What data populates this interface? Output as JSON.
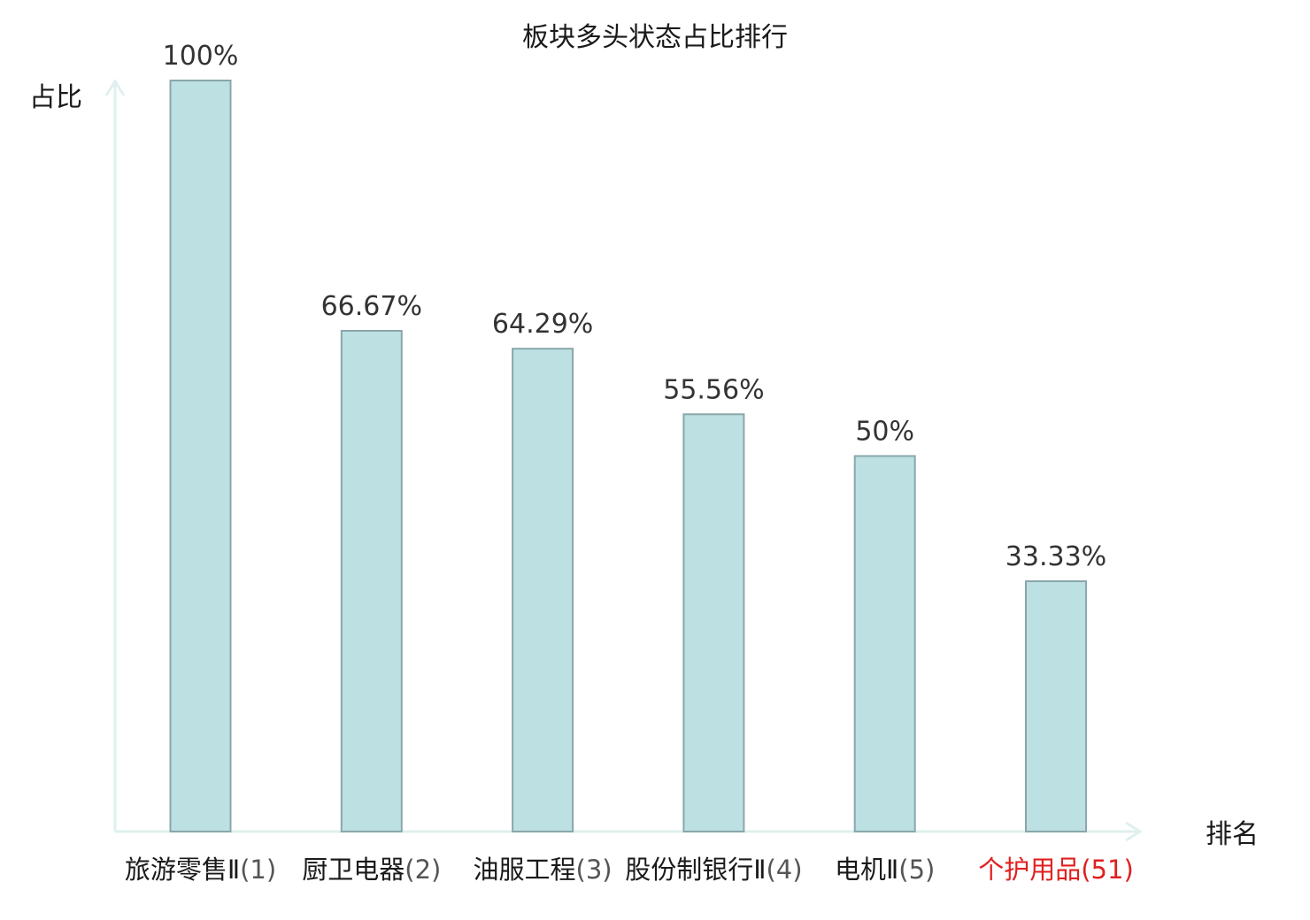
{
  "chart_data": {
    "type": "bar",
    "title": "板块多头状态占比排行",
    "xlabel": "排名",
    "ylabel": "占比",
    "ylim": [
      0,
      100
    ],
    "grid": false,
    "legend": "none",
    "categories": [
      {
        "name": "旅游零售Ⅱ",
        "rank": "(1)",
        "highlight": false
      },
      {
        "name": "厨卫电器",
        "rank": "(2)",
        "highlight": false
      },
      {
        "name": "油服工程",
        "rank": "(3)",
        "highlight": false
      },
      {
        "name": "股份制银行Ⅱ",
        "rank": "(4)",
        "highlight": false
      },
      {
        "name": "电机Ⅱ",
        "rank": "(5)",
        "highlight": false
      },
      {
        "name": "个护用品",
        "rank": "(51)",
        "highlight": true
      }
    ],
    "values": [
      100,
      66.67,
      64.29,
      55.56,
      50,
      33.33
    ],
    "value_labels": [
      "100%",
      "66.67%",
      "64.29%",
      "55.56%",
      "50%",
      "33.33%"
    ],
    "colors": {
      "bar_fill": "#bde0e3",
      "bar_stroke": "#8aa7ab",
      "axis": "#dff0ee",
      "highlight_text": "#e02020",
      "normal_text": "#1a1a1a"
    }
  }
}
